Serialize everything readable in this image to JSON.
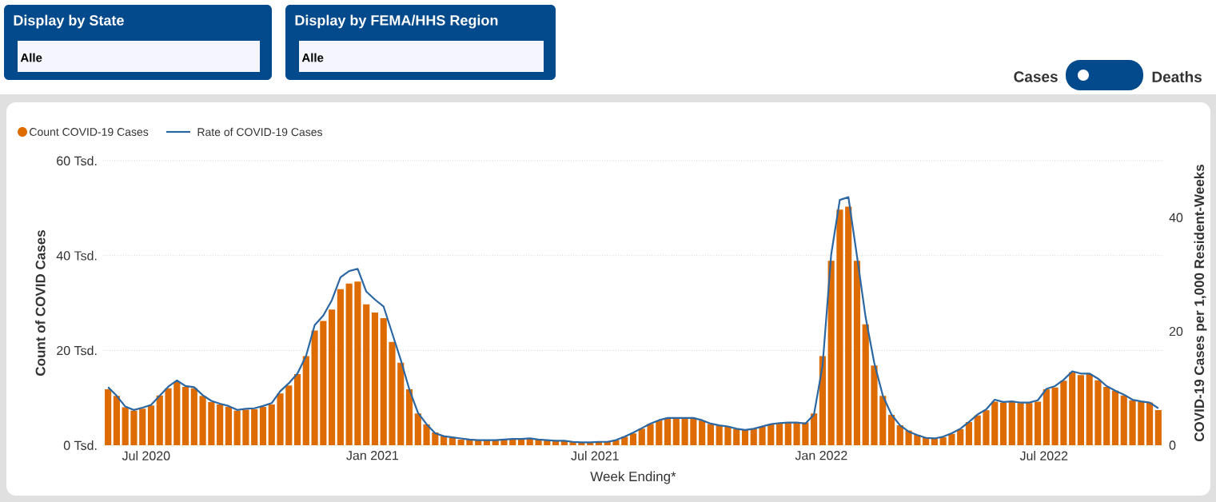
{
  "chart_data": {
    "type": "bar",
    "xlabel": "Week Ending*",
    "ylabel": "Count of COVID Cases",
    "y2label": "COVID-19 Cases per 1,000 Resident-Weeks",
    "x": [
      "2020-05-31",
      "2020-06-07",
      "2020-06-14",
      "2020-06-21",
      "2020-06-28",
      "2020-07-05",
      "2020-07-12",
      "2020-07-19",
      "2020-07-26",
      "2020-08-02",
      "2020-08-09",
      "2020-08-16",
      "2020-08-23",
      "2020-08-30",
      "2020-09-06",
      "2020-09-13",
      "2020-09-20",
      "2020-09-27",
      "2020-10-04",
      "2020-10-11",
      "2020-10-18",
      "2020-10-25",
      "2020-11-01",
      "2020-11-08",
      "2020-11-15",
      "2020-11-22",
      "2020-11-29",
      "2020-12-06",
      "2020-12-13",
      "2020-12-20",
      "2020-12-27",
      "2021-01-03",
      "2021-01-10",
      "2021-01-17",
      "2021-01-24",
      "2021-01-31",
      "2021-02-07",
      "2021-02-14",
      "2021-02-21",
      "2021-02-28",
      "2021-03-07",
      "2021-03-14",
      "2021-03-21",
      "2021-03-28",
      "2021-04-04",
      "2021-04-11",
      "2021-04-18",
      "2021-04-25",
      "2021-05-02",
      "2021-05-09",
      "2021-05-16",
      "2021-05-23",
      "2021-05-30",
      "2021-06-06",
      "2021-06-13",
      "2021-06-20",
      "2021-06-27",
      "2021-07-04",
      "2021-07-11",
      "2021-07-18",
      "2021-07-25",
      "2021-08-01",
      "2021-08-08",
      "2021-08-15",
      "2021-08-22",
      "2021-08-29",
      "2021-09-05",
      "2021-09-12",
      "2021-09-19",
      "2021-09-26",
      "2021-10-03",
      "2021-10-10",
      "2021-10-17",
      "2021-10-24",
      "2021-10-31",
      "2021-11-07",
      "2021-11-14",
      "2021-11-21",
      "2021-11-28",
      "2021-12-05",
      "2021-12-12",
      "2021-12-19",
      "2021-12-26",
      "2022-01-02",
      "2022-01-09",
      "2022-01-16",
      "2022-01-23",
      "2022-01-30",
      "2022-02-06",
      "2022-02-13",
      "2022-02-20",
      "2022-02-27",
      "2022-03-06",
      "2022-03-13",
      "2022-03-20",
      "2022-03-27",
      "2022-04-03",
      "2022-04-10",
      "2022-04-17",
      "2022-04-24",
      "2022-05-01",
      "2022-05-08",
      "2022-05-15",
      "2022-05-22",
      "2022-05-29",
      "2022-06-05",
      "2022-06-12",
      "2022-06-19",
      "2022-06-26",
      "2022-07-03",
      "2022-07-10",
      "2022-07-17",
      "2022-07-24",
      "2022-07-31",
      "2022-08-07",
      "2022-08-14",
      "2022-08-21",
      "2022-08-28",
      "2022-09-04",
      "2022-09-11",
      "2022-09-18",
      "2022-09-25",
      "2022-10-02"
    ],
    "series": [
      {
        "name": "Count COVID-19 Cases",
        "color": "#dd6b00",
        "values": [
          11.8,
          10.4,
          8.0,
          7.3,
          7.7,
          8.4,
          10.5,
          12.0,
          13.3,
          12.3,
          12.0,
          10.4,
          9.1,
          8.6,
          8.1,
          7.3,
          7.5,
          7.6,
          8.1,
          8.6,
          10.9,
          12.6,
          15.0,
          18.8,
          24.2,
          26.2,
          28.6,
          32.9,
          34.1,
          34.5,
          29.7,
          28.0,
          26.8,
          21.8,
          17.4,
          11.8,
          6.7,
          4.4,
          2.7,
          2.0,
          1.6,
          1.2,
          1.2,
          1.1,
          1.1,
          1.1,
          1.2,
          1.3,
          1.3,
          1.4,
          1.2,
          1.1,
          1.0,
          1.0,
          0.7,
          0.6,
          0.6,
          0.7,
          0.7,
          1.1,
          1.8,
          2.5,
          3.5,
          4.5,
          5.2,
          5.6,
          5.6,
          5.6,
          5.6,
          5.2,
          4.5,
          4.2,
          3.9,
          3.4,
          3.2,
          3.5,
          3.9,
          4.4,
          4.6,
          4.8,
          4.8,
          4.8,
          6.7,
          18.8,
          38.9,
          49.7,
          50.3,
          38.9,
          25.5,
          16.8,
          10.4,
          6.4,
          4.2,
          3.1,
          2.2,
          1.7,
          1.4,
          1.7,
          2.4,
          3.4,
          4.9,
          6.3,
          7.4,
          9.2,
          9.0,
          9.1,
          8.9,
          8.9,
          9.2,
          11.8,
          12.2,
          13.6,
          15.4,
          14.8,
          15.0,
          13.7,
          12.3,
          11.5,
          10.5,
          9.5,
          9.2,
          9.0,
          7.4
        ]
      },
      {
        "name": "Rate of COVID-19 Cases",
        "type": "line",
        "axis": "y2",
        "color": "#2b67a3",
        "values": [
          10.2,
          8.7,
          6.8,
          6.2,
          6.6,
          7.1,
          8.7,
          10.3,
          11.4,
          10.4,
          10.2,
          8.8,
          7.8,
          7.3,
          6.9,
          6.2,
          6.4,
          6.5,
          6.9,
          7.4,
          9.5,
          10.9,
          12.6,
          15.7,
          21.1,
          22.8,
          25.5,
          29.5,
          30.6,
          31.0,
          27.0,
          25.6,
          24.4,
          19.7,
          15.0,
          9.8,
          5.7,
          3.7,
          2.1,
          1.6,
          1.4,
          1.2,
          1.0,
          0.9,
          0.9,
          0.9,
          1.0,
          1.1,
          1.1,
          1.2,
          1.0,
          0.9,
          0.8,
          0.8,
          0.6,
          0.5,
          0.5,
          0.6,
          0.6,
          0.9,
          1.5,
          2.2,
          3.0,
          3.8,
          4.4,
          4.8,
          4.8,
          4.8,
          4.8,
          4.4,
          3.8,
          3.5,
          3.3,
          2.9,
          2.7,
          2.9,
          3.3,
          3.7,
          3.9,
          4.0,
          4.0,
          3.8,
          5.4,
          14.0,
          33.5,
          43.1,
          43.6,
          33.2,
          22.5,
          14.5,
          8.7,
          5.4,
          3.5,
          2.4,
          1.8,
          1.3,
          1.2,
          1.5,
          2.1,
          2.9,
          4.1,
          5.4,
          6.3,
          8.0,
          7.6,
          7.7,
          7.5,
          7.5,
          7.9,
          9.9,
          10.4,
          11.5,
          13.0,
          12.6,
          12.6,
          11.7,
          10.4,
          9.6,
          8.9,
          8.0,
          7.7,
          7.5,
          6.5
        ]
      }
    ],
    "xlim": [
      "2020-05-27",
      "2022-10-06"
    ],
    "xticks": [
      {
        "value": "2020-07-01",
        "label": "Jul 2020"
      },
      {
        "value": "2021-01-01",
        "label": "Jan 2021"
      },
      {
        "value": "2021-07-01",
        "label": "Jul 2021"
      },
      {
        "value": "2022-01-01",
        "label": "Jan 2022"
      },
      {
        "value": "2022-07-01",
        "label": "Jul 2022"
      }
    ],
    "ylim": [
      0,
      60
    ],
    "yticks": [
      {
        "value": 0,
        "label": "0 Tsd."
      },
      {
        "value": 20,
        "label": "20 Tsd."
      },
      {
        "value": 40,
        "label": "40 Tsd."
      },
      {
        "value": 60,
        "label": "60 Tsd."
      }
    ],
    "y2lim": [
      0,
      50
    ],
    "y2ticks": [
      0,
      20,
      40
    ],
    "grid": "y",
    "legend": "top left",
    "marker": "none",
    "annotations": [
      "Display by State",
      "Alle",
      "Display by FEMA/HHS Region",
      "Alle",
      "Cases",
      "Deaths"
    ]
  }
}
